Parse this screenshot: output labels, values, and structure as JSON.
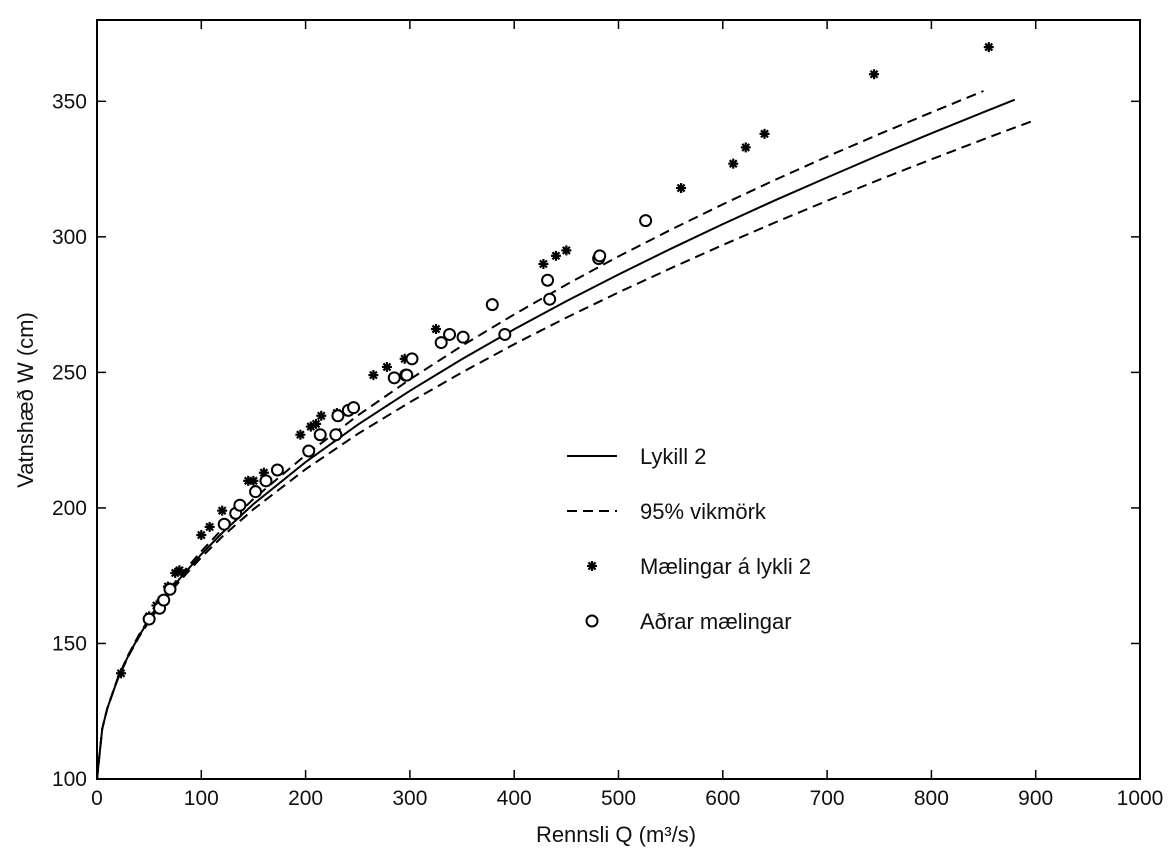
{
  "chart_data": {
    "type": "line",
    "title": "",
    "xlabel": "Rennsli Q (m³/s)",
    "ylabel": "Vatnshæð W (cm)",
    "xlim": [
      0,
      1000
    ],
    "ylim": [
      100,
      380
    ],
    "x_ticks": [
      0,
      100,
      200,
      300,
      400,
      500,
      600,
      700,
      800,
      900,
      1000
    ],
    "y_ticks": [
      100,
      150,
      200,
      250,
      300,
      350
    ],
    "grid": false,
    "legend_position": "center-right",
    "series": [
      {
        "name": "Lykill 2",
        "kind": "line",
        "style": "solid",
        "color": "#000000",
        "x": [
          0,
          5,
          10,
          20,
          30,
          40,
          50,
          60,
          70,
          80,
          100,
          120,
          150,
          200,
          250,
          300,
          350,
          400,
          450,
          500,
          550,
          600,
          650,
          700,
          750,
          800,
          850,
          880
        ],
        "y": [
          100,
          118.5,
          126.2,
          137.2,
          145.5,
          152.6,
          158.7,
          164.3,
          169.5,
          174.2,
          182.9,
          190.8,
          201.4,
          216.9,
          230.7,
          243.2,
          254.9,
          265.9,
          276.3,
          286.1,
          295.6,
          304.7,
          313.5,
          321.9,
          330.2,
          338.2,
          346.0,
          350.6
        ]
      },
      {
        "name": "95% vikmörk",
        "kind": "line",
        "style": "dashed",
        "color": "#000000",
        "x": [
          0,
          5,
          10,
          20,
          30,
          40,
          50,
          60,
          70,
          80,
          100,
          120,
          150,
          200,
          250,
          300,
          350,
          400,
          450,
          500,
          550,
          600,
          650,
          700,
          750,
          800,
          850
        ],
        "y": [
          100,
          118.5,
          126.3,
          137.4,
          145.8,
          153.0,
          159.2,
          164.9,
          170.2,
          175.1,
          184.0,
          192.2,
          203.3,
          219.5,
          234.1,
          247.4,
          259.8,
          271.4,
          282.4,
          292.8,
          302.6,
          312.0,
          321.0,
          329.6,
          337.9,
          345.9,
          353.8
        ]
      },
      {
        "name": "",
        "kind": "line",
        "style": "dashed",
        "color": "#000000",
        "x": [
          0,
          5,
          10,
          20,
          30,
          40,
          50,
          60,
          70,
          80,
          100,
          120,
          150,
          200,
          250,
          300,
          350,
          400,
          450,
          500,
          550,
          600,
          650,
          700,
          750,
          800,
          850,
          900
        ],
        "y": [
          100,
          118.5,
          126.1,
          137.0,
          145.2,
          152.2,
          158.2,
          163.7,
          168.8,
          173.3,
          181.8,
          189.4,
          199.5,
          214.3,
          227.3,
          239.0,
          250.0,
          260.4,
          270.2,
          279.5,
          288.4,
          297.0,
          305.3,
          313.3,
          321.1,
          328.6,
          336.0,
          343.2
        ]
      },
      {
        "name": "Mælingar á lykli 2",
        "kind": "scatter",
        "marker": "asterisk",
        "x": [
          23,
          50,
          57,
          62,
          68,
          75,
          79,
          100,
          108,
          120,
          145,
          150,
          160,
          195,
          205,
          210,
          215,
          230,
          265,
          278,
          295,
          325,
          428,
          440,
          450,
          560,
          610,
          622,
          640,
          745,
          855
        ],
        "y": [
          139,
          160,
          164,
          166,
          171,
          176,
          177,
          190,
          193,
          199,
          210,
          210,
          213,
          227,
          230,
          231,
          234,
          235,
          249,
          252,
          255,
          266,
          290,
          293,
          295,
          318,
          327,
          333,
          338,
          360,
          370
        ]
      },
      {
        "name": "Aðrar mælingar",
        "kind": "scatter",
        "marker": "circle",
        "x": [
          50,
          60,
          64,
          70,
          122,
          133,
          137,
          152,
          162,
          173,
          203,
          214,
          229,
          231,
          241,
          246,
          285,
          296,
          297,
          302,
          330,
          338,
          351,
          379,
          391,
          432,
          434,
          481,
          482,
          526
        ],
        "y": [
          159,
          163,
          166,
          170,
          194,
          198,
          201,
          206,
          210,
          214,
          221,
          227,
          227,
          234,
          236,
          237,
          248,
          249,
          249,
          255,
          261,
          264,
          263,
          275,
          264,
          284,
          277,
          292,
          293,
          306
        ]
      }
    ],
    "legend": [
      {
        "label": "Lykill 2",
        "symbol": "solid-line"
      },
      {
        "label": "95% vikmörk",
        "symbol": "dashed-line"
      },
      {
        "label": "Mælingar á lykli 2",
        "symbol": "asterisk"
      },
      {
        "label": "Aðrar mælingar",
        "symbol": "circle"
      }
    ]
  }
}
